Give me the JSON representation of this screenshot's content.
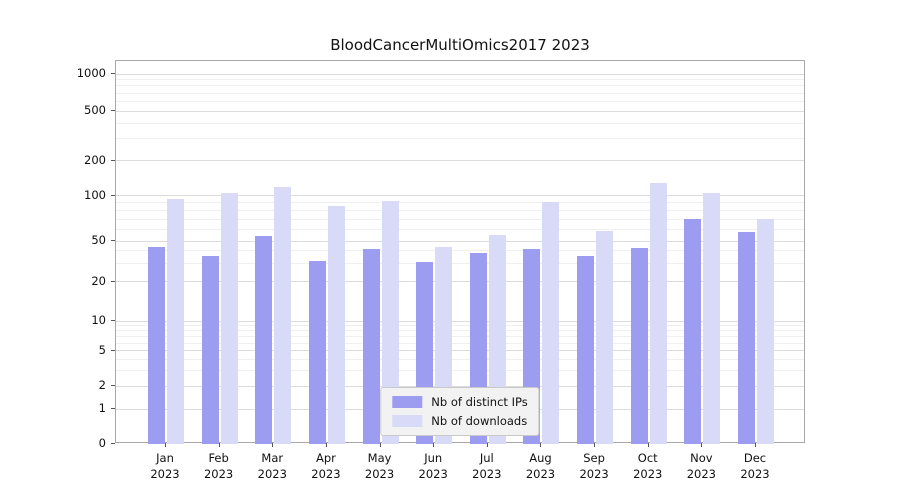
{
  "chart_data": {
    "type": "bar",
    "title": "BloodCancerMultiOmics2017 2023",
    "categories": [
      "Jan",
      "Feb",
      "Mar",
      "Apr",
      "May",
      "Jun",
      "Jul",
      "Aug",
      "Sep",
      "Oct",
      "Nov",
      "Dec"
    ],
    "year": "2023",
    "series": [
      {
        "name": "Nb of distinct IPs",
        "color": "#9c9cf0",
        "values": [
          44,
          36,
          54,
          32,
          42,
          31,
          38,
          42,
          36,
          43,
          70,
          57
        ]
      },
      {
        "name": "Nb of downloads",
        "color": "#d9d9f8",
        "values": [
          95,
          105,
          120,
          85,
          92,
          44,
          55,
          91,
          58,
          130,
          105,
          70
        ]
      }
    ],
    "y_ticks": [
      0,
      1,
      2,
      5,
      10,
      20,
      50,
      100,
      200,
      500,
      1000
    ],
    "ylim": [
      0,
      1000
    ],
    "yscale": "log-like",
    "grid": true,
    "legend_position": "lower center"
  }
}
